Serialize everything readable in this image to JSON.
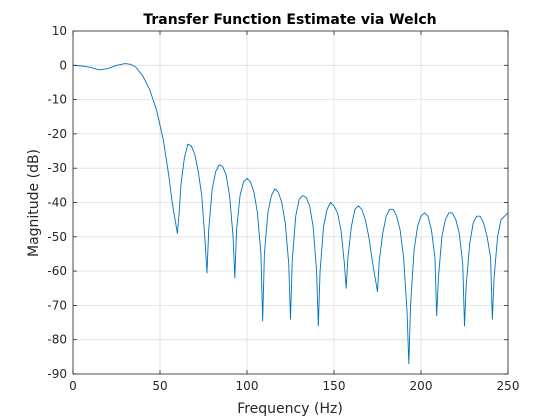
{
  "chart_data": {
    "type": "line",
    "title": "Transfer Function Estimate via Welch",
    "xlabel": "Frequency (Hz)",
    "ylabel": "Magnitude (dB)",
    "xlim": [
      0,
      250
    ],
    "ylim": [
      -90,
      10
    ],
    "xticks": [
      0,
      50,
      100,
      150,
      200,
      250
    ],
    "yticks": [
      10,
      0,
      -10,
      -20,
      -30,
      -40,
      -50,
      -60,
      -70,
      -80,
      -90
    ],
    "grid": true,
    "box": true,
    "series": [
      {
        "color": "#0072bd",
        "x": [
          0,
          5,
          10,
          15,
          20,
          25,
          30,
          33,
          36,
          40,
          44,
          48,
          52,
          55,
          57,
          59,
          60,
          61,
          62,
          64,
          66,
          68,
          70,
          72,
          74,
          76,
          77,
          78,
          80,
          82,
          84,
          86,
          88,
          90,
          92,
          93,
          94,
          96,
          98,
          100,
          102,
          104,
          106,
          108,
          109,
          110,
          112,
          114,
          116,
          118,
          120,
          122,
          124,
          125,
          126,
          128,
          130,
          132,
          134,
          136,
          138,
          140,
          141,
          142,
          144,
          146,
          148,
          150,
          152,
          154,
          156,
          157,
          158,
          160,
          162,
          164,
          166,
          168,
          170,
          172,
          174,
          175,
          176,
          178,
          180,
          182,
          184,
          186,
          188,
          190,
          192,
          193,
          194,
          196,
          198,
          200,
          202,
          204,
          206,
          208,
          209,
          210,
          212,
          214,
          216,
          218,
          220,
          222,
          224,
          225,
          226,
          228,
          230,
          232,
          234,
          236,
          238,
          240,
          241,
          242,
          244,
          246,
          248,
          250
        ],
        "values": [
          0,
          -0.2,
          -0.6,
          -1.3,
          -1,
          0,
          0.5,
          0.3,
          -0.5,
          -3,
          -7,
          -13,
          -22,
          -32,
          -40,
          -46,
          -49,
          -43,
          -35,
          -27,
          -23,
          -23.5,
          -26,
          -31,
          -38,
          -52,
          -60.5,
          -48,
          -36,
          -31,
          -29,
          -29.5,
          -32,
          -38,
          -50,
          -62,
          -48,
          -38,
          -34,
          -33,
          -34,
          -37,
          -43,
          -55,
          -74.5,
          -55,
          -43,
          -38,
          -36,
          -37,
          -40,
          -46,
          -58,
          -74,
          -57,
          -44,
          -39,
          -38,
          -38.5,
          -41,
          -47,
          -60,
          -76,
          -60,
          -47,
          -42,
          -40,
          -41,
          -43,
          -48,
          -58,
          -65,
          -56,
          -47,
          -42,
          -41,
          -42,
          -45,
          -50,
          -57,
          -63,
          -66,
          -57,
          -49,
          -44,
          -42,
          -42,
          -44,
          -48,
          -56,
          -72,
          -87,
          -70,
          -54,
          -47,
          -44,
          -43,
          -44,
          -48,
          -56,
          -73,
          -62,
          -50,
          -45,
          -43,
          -43,
          -45,
          -49,
          -58,
          -76,
          -64,
          -52,
          -46,
          -44,
          -44,
          -46,
          -50,
          -56,
          -74,
          -62,
          -50,
          -45,
          -44,
          -43
        ]
      }
    ]
  }
}
